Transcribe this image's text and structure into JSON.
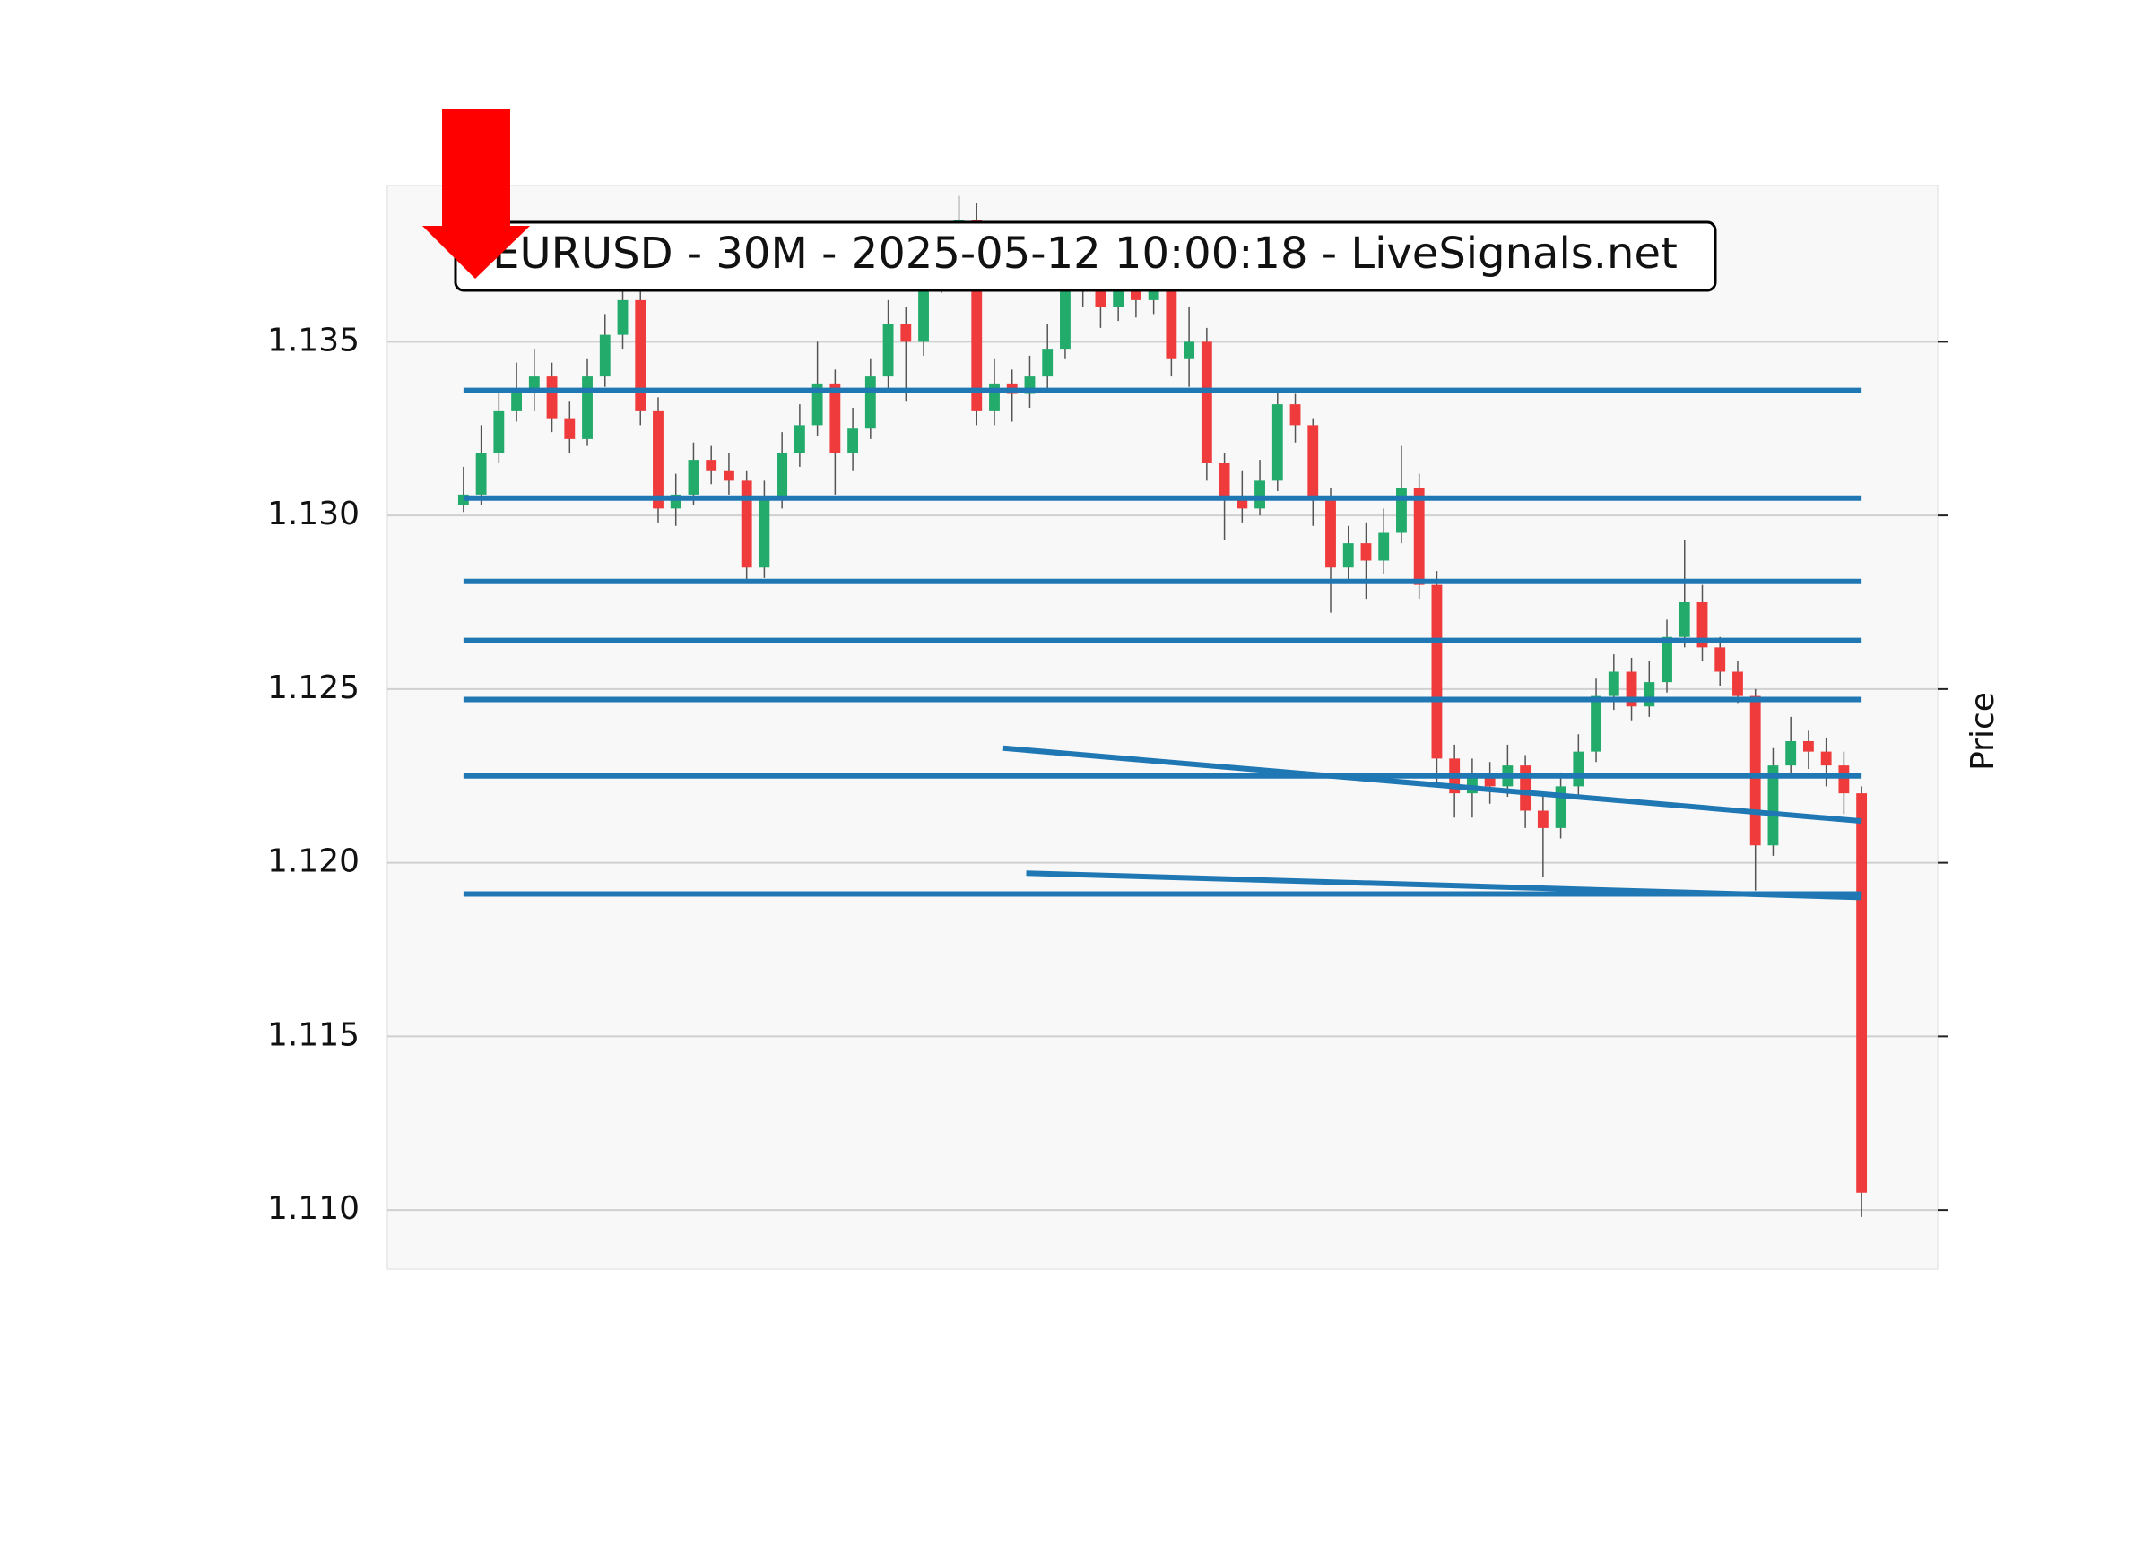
{
  "chart_data": {
    "type": "candlestick",
    "title": "EURUSD - 30M - 2025-05-12 10:00:18 - LiveSignals.net",
    "y_label": "Price",
    "ylim": [
      1.1083,
      1.1395
    ],
    "yticks": [
      {
        "value": 1.11,
        "label": "1.110"
      },
      1.115,
      {
        "value": 1.12,
        "label": "1.120"
      },
      1.125,
      {
        "value": 1.13,
        "label": "1.130"
      },
      1.135
    ],
    "xlim": [
      -4.3,
      83.3
    ],
    "grid": true,
    "up_color": "#22ab6b",
    "down_color": "#ef3b3b",
    "wick_color": "#555555",
    "line_color": "#1f77b4",
    "open": [
      1.1303,
      1.1306,
      1.1318,
      1.133,
      1.1336,
      1.134,
      1.1328,
      1.1322,
      1.134,
      1.1352,
      1.1362,
      1.133,
      1.1302,
      1.1306,
      1.1316,
      1.1313,
      1.131,
      1.1285,
      1.1305,
      1.1318,
      1.1326,
      1.1338,
      1.1318,
      1.1325,
      1.134,
      1.1355,
      1.135,
      1.1368,
      1.1375,
      1.1385,
      1.133,
      1.1338,
      1.1335,
      1.134,
      1.1348,
      1.1365,
      1.1368,
      1.136,
      1.1365,
      1.1362,
      1.1365,
      1.1345,
      1.135,
      1.1315,
      1.1305,
      1.1302,
      1.131,
      1.1332,
      1.1326,
      1.1305,
      1.1285,
      1.1292,
      1.1287,
      1.1295,
      1.1308,
      1.128,
      1.123,
      1.122,
      1.1225,
      1.1222,
      1.1228,
      1.1215,
      1.121,
      1.1222,
      1.1232,
      1.1248,
      1.1255,
      1.1245,
      1.1252,
      1.1265,
      1.1275,
      1.1262,
      1.1255,
      1.1248,
      1.1205,
      1.1228,
      1.1235,
      1.1232,
      1.1228,
      1.122
    ],
    "high": [
      1.1314,
      1.1326,
      1.1336,
      1.1344,
      1.1348,
      1.1344,
      1.1333,
      1.1345,
      1.1358,
      1.137,
      1.1366,
      1.1334,
      1.1312,
      1.1321,
      1.132,
      1.1318,
      1.1313,
      1.131,
      1.1324,
      1.1332,
      1.135,
      1.1342,
      1.1331,
      1.1345,
      1.1362,
      1.136,
      1.1374,
      1.1382,
      1.1392,
      1.139,
      1.1345,
      1.1342,
      1.1346,
      1.1355,
      1.1372,
      1.1375,
      1.1372,
      1.137,
      1.137,
      1.1378,
      1.1368,
      1.136,
      1.1354,
      1.1318,
      1.1313,
      1.1316,
      1.1336,
      1.1335,
      1.1328,
      1.1308,
      1.1297,
      1.1298,
      1.1302,
      1.132,
      1.1312,
      1.1284,
      1.1234,
      1.123,
      1.1229,
      1.1234,
      1.1231,
      1.122,
      1.1226,
      1.1237,
      1.1253,
      1.126,
      1.1259,
      1.1258,
      1.127,
      1.1293,
      1.128,
      1.1265,
      1.1258,
      1.125,
      1.1233,
      1.1242,
      1.1238,
      1.1236,
      1.1232,
      1.1222
    ],
    "low": [
      1.1301,
      1.1303,
      1.1315,
      1.1327,
      1.133,
      1.1324,
      1.1318,
      1.132,
      1.1337,
      1.1348,
      1.1326,
      1.1298,
      1.1297,
      1.1303,
      1.1309,
      1.1306,
      1.1281,
      1.1282,
      1.1302,
      1.1314,
      1.1323,
      1.1306,
      1.1313,
      1.1322,
      1.1336,
      1.1333,
      1.1346,
      1.1364,
      1.137,
      1.1326,
      1.1326,
      1.1327,
      1.1331,
      1.1336,
      1.1345,
      1.136,
      1.1354,
      1.1356,
      1.1357,
      1.1358,
      1.134,
      1.1337,
      1.131,
      1.1293,
      1.1298,
      1.13,
      1.1307,
      1.1321,
      1.1297,
      1.1272,
      1.1281,
      1.1276,
      1.1283,
      1.1292,
      1.1276,
      1.1222,
      1.1213,
      1.1213,
      1.1217,
      1.1219,
      1.121,
      1.1196,
      1.1207,
      1.1219,
      1.1229,
      1.1244,
      1.1241,
      1.1242,
      1.1249,
      1.1262,
      1.1258,
      1.1251,
      1.1246,
      1.1192,
      1.1202,
      1.1225,
      1.1227,
      1.1222,
      1.1214,
      1.1098
    ],
    "close": [
      1.1306,
      1.1318,
      1.133,
      1.1336,
      1.134,
      1.1328,
      1.1322,
      1.134,
      1.1352,
      1.1362,
      1.133,
      1.1302,
      1.1306,
      1.1316,
      1.1313,
      1.131,
      1.1285,
      1.1305,
      1.1318,
      1.1326,
      1.1338,
      1.1318,
      1.1325,
      1.134,
      1.1355,
      1.135,
      1.1368,
      1.1375,
      1.1385,
      1.133,
      1.1338,
      1.1335,
      1.134,
      1.1348,
      1.1365,
      1.1368,
      1.136,
      1.1365,
      1.1362,
      1.1365,
      1.1345,
      1.135,
      1.1315,
      1.1305,
      1.1302,
      1.131,
      1.1332,
      1.1326,
      1.1305,
      1.1285,
      1.1292,
      1.1287,
      1.1295,
      1.1308,
      1.128,
      1.123,
      1.122,
      1.1225,
      1.1222,
      1.1228,
      1.1215,
      1.121,
      1.1222,
      1.1232,
      1.1248,
      1.1255,
      1.1245,
      1.1252,
      1.1265,
      1.1275,
      1.1262,
      1.1255,
      1.1248,
      1.1205,
      1.1228,
      1.1235,
      1.1232,
      1.1228,
      1.122,
      1.1105
    ],
    "levels": [
      1.1336,
      1.1305,
      1.1281,
      1.1264,
      1.1247,
      1.1225,
      1.1191
    ],
    "trendlines": [
      {
        "x": [
          30.5,
          79
        ],
        "y": [
          1.1233,
          1.1212
        ]
      },
      {
        "x": [
          31.8,
          79
        ],
        "y": [
          1.1197,
          1.119
        ]
      }
    ]
  }
}
